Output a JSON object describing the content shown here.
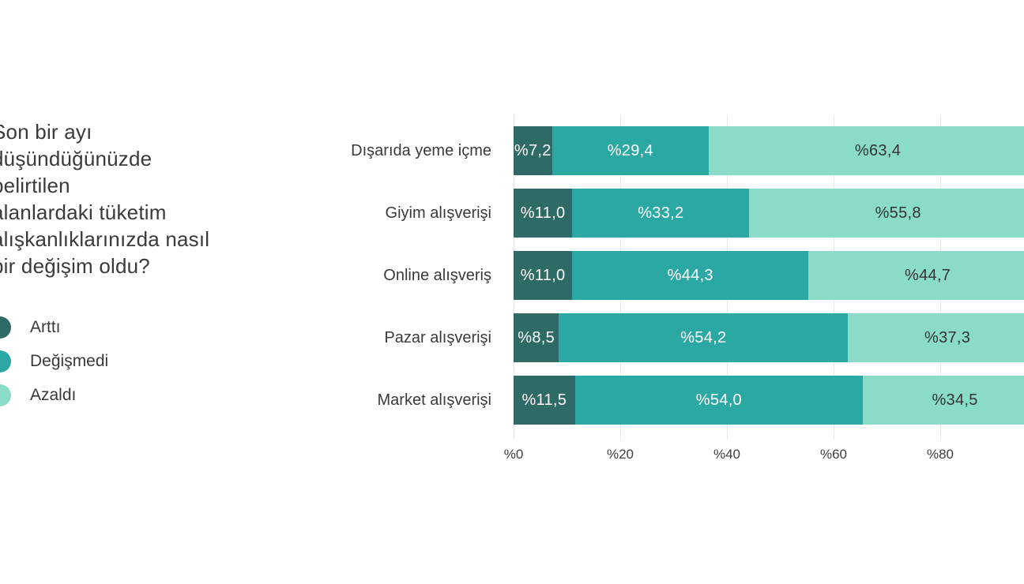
{
  "title": {
    "lines": [
      "Son bir ayı",
      "düşündüğünüzde",
      "belirtilen",
      "alanlardaki tüketim",
      "alışkanlıklarınızda nasıl",
      "bir değişim oldu?"
    ],
    "full_text": "Son bir ayı düşündüğünüzde belirtilen alanlardaki tüketim alışkanlıklarınızda nasıl bir değişim oldu?"
  },
  "legend": {
    "items": [
      {
        "key": "artti",
        "label": "Arttı",
        "color": "#2F6B66"
      },
      {
        "key": "degismedi",
        "label": "Değişmedi",
        "color": "#2BA7A4"
      },
      {
        "key": "azaldi",
        "label": "Azaldı",
        "color": "#8ADCC9"
      }
    ]
  },
  "chart_data": {
    "type": "bar",
    "orientation": "horizontal",
    "stacked": true,
    "unit": "percent",
    "categories": [
      "Dışarıda yeme içme",
      "Giyim alışverişi",
      "Online alışveriş",
      "Pazar alışverişi",
      "Market alışverişi"
    ],
    "series": [
      {
        "key": "artti",
        "name": "Arttı",
        "color": "#2F6B66",
        "label_color": "#ffffff",
        "values": [
          7.2,
          11.0,
          11.0,
          8.5,
          11.5
        ],
        "labels": [
          "%7,2",
          "%11,0",
          "%11,0",
          "%8,5",
          "%11,5"
        ]
      },
      {
        "key": "degismedi",
        "name": "Değişmedi",
        "color": "#2BA7A4",
        "label_color": "#ffffff",
        "values": [
          29.4,
          33.2,
          44.3,
          54.2,
          54.0
        ],
        "labels": [
          "%29,4",
          "%33,2",
          "%44,3",
          "%54,2",
          "%54,0"
        ]
      },
      {
        "key": "azaldi",
        "name": "Azaldı",
        "color": "#8ADCC9",
        "label_color": "#333333",
        "values": [
          63.4,
          55.8,
          44.7,
          37.3,
          34.5
        ],
        "labels": [
          "%63,4",
          "%55,8",
          "%44,7",
          "%37,3",
          "%34,5"
        ]
      }
    ],
    "x_axis": {
      "range": [
        0,
        100
      ],
      "ticks": [
        {
          "value": 0,
          "label": "%0"
        },
        {
          "value": 20,
          "label": "%20"
        },
        {
          "value": 40,
          "label": "%40"
        },
        {
          "value": 60,
          "label": "%60"
        },
        {
          "value": 80,
          "label": "%80"
        }
      ]
    },
    "grid": true,
    "legend_position": "left",
    "bar_cut_off_right": true
  }
}
